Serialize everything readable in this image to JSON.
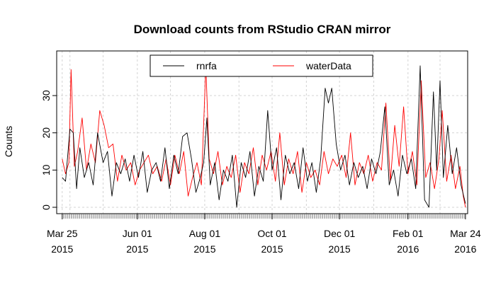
{
  "chart_data": {
    "type": "line",
    "title": "Download counts from RStudio CRAN mirror",
    "xlabel": "",
    "ylabel": "Counts",
    "xlim": [
      "2015-03-20",
      "2016-03-26"
    ],
    "ylim": [
      0,
      38
    ],
    "grid": true,
    "legend_position": "top",
    "x_ticks": [
      {
        "date": "2015-03-25",
        "line1": "Mar 25",
        "line2": "2015"
      },
      {
        "date": "2015-06-01",
        "line1": "Jun 01",
        "line2": "2015"
      },
      {
        "date": "2015-08-01",
        "line1": "Aug 01",
        "line2": "2015"
      },
      {
        "date": "2015-10-01",
        "line1": "Oct 01",
        "line2": "2015"
      },
      {
        "date": "2015-12-01",
        "line1": "Dec 01",
        "line2": "2015"
      },
      {
        "date": "2016-02-01",
        "line1": "Feb 01",
        "line2": "2016"
      },
      {
        "date": "2016-03-24",
        "line1": "Mar 24",
        "line2": "2016"
      }
    ],
    "y_ticks": [
      "0",
      "10",
      "20",
      "30"
    ],
    "series": [
      {
        "name": "rnrfa",
        "color": "#000000",
        "points": [
          [
            "2015-03-25",
            8
          ],
          [
            "2015-03-28",
            7
          ],
          [
            "2015-04-01",
            21
          ],
          [
            "2015-04-04",
            20
          ],
          [
            "2015-04-07",
            5
          ],
          [
            "2015-04-10",
            16
          ],
          [
            "2015-04-14",
            8
          ],
          [
            "2015-04-18",
            12
          ],
          [
            "2015-04-22",
            6
          ],
          [
            "2015-04-26",
            20
          ],
          [
            "2015-05-01",
            12
          ],
          [
            "2015-05-05",
            15
          ],
          [
            "2015-05-09",
            3
          ],
          [
            "2015-05-13",
            12
          ],
          [
            "2015-05-17",
            9
          ],
          [
            "2015-05-21",
            13
          ],
          [
            "2015-05-25",
            7
          ],
          [
            "2015-05-29",
            14
          ],
          [
            "2015-06-02",
            8
          ],
          [
            "2015-06-06",
            15
          ],
          [
            "2015-06-10",
            4
          ],
          [
            "2015-06-14",
            10
          ],
          [
            "2015-06-18",
            12
          ],
          [
            "2015-06-22",
            7
          ],
          [
            "2015-06-26",
            16
          ],
          [
            "2015-06-30",
            5
          ],
          [
            "2015-07-04",
            14
          ],
          [
            "2015-07-08",
            9
          ],
          [
            "2015-07-12",
            19
          ],
          [
            "2015-07-16",
            20
          ],
          [
            "2015-07-20",
            13
          ],
          [
            "2015-07-24",
            4
          ],
          [
            "2015-07-28",
            8
          ],
          [
            "2015-07-31",
            12
          ],
          [
            "2015-08-03",
            24
          ],
          [
            "2015-08-06",
            6
          ],
          [
            "2015-08-10",
            12
          ],
          [
            "2015-08-14",
            2
          ],
          [
            "2015-08-18",
            10
          ],
          [
            "2015-08-22",
            7
          ],
          [
            "2015-08-26",
            14
          ],
          [
            "2015-08-30",
            0
          ],
          [
            "2015-09-03",
            12
          ],
          [
            "2015-09-07",
            8
          ],
          [
            "2015-09-11",
            15
          ],
          [
            "2015-09-15",
            3
          ],
          [
            "2015-09-19",
            11
          ],
          [
            "2015-09-23",
            7
          ],
          [
            "2015-09-27",
            26
          ],
          [
            "2015-10-01",
            10
          ],
          [
            "2015-10-05",
            16
          ],
          [
            "2015-10-09",
            2
          ],
          [
            "2015-10-13",
            14
          ],
          [
            "2015-10-17",
            9
          ],
          [
            "2015-10-21",
            12
          ],
          [
            "2015-10-25",
            5
          ],
          [
            "2015-10-29",
            16
          ],
          [
            "2015-11-02",
            7
          ],
          [
            "2015-11-06",
            12
          ],
          [
            "2015-11-10",
            4
          ],
          [
            "2015-11-14",
            13
          ],
          [
            "2015-11-18",
            32
          ],
          [
            "2015-11-21",
            28
          ],
          [
            "2015-11-24",
            32
          ],
          [
            "2015-11-28",
            17
          ],
          [
            "2015-12-02",
            10
          ],
          [
            "2015-12-06",
            14
          ],
          [
            "2015-12-10",
            6
          ],
          [
            "2015-12-14",
            12
          ],
          [
            "2015-12-18",
            8
          ],
          [
            "2015-12-22",
            11
          ],
          [
            "2015-12-26",
            5
          ],
          [
            "2015-12-30",
            13
          ],
          [
            "2016-01-03",
            9
          ],
          [
            "2016-01-07",
            15
          ],
          [
            "2016-01-11",
            27
          ],
          [
            "2016-01-15",
            6
          ],
          [
            "2016-01-19",
            10
          ],
          [
            "2016-01-23",
            3
          ],
          [
            "2016-01-27",
            14
          ],
          [
            "2016-01-31",
            9
          ],
          [
            "2016-02-04",
            13
          ],
          [
            "2016-02-08",
            5
          ],
          [
            "2016-02-12",
            38
          ],
          [
            "2016-02-16",
            2
          ],
          [
            "2016-02-20",
            0
          ],
          [
            "2016-02-24",
            31
          ],
          [
            "2016-02-27",
            10
          ],
          [
            "2016-03-01",
            34
          ],
          [
            "2016-03-04",
            8
          ],
          [
            "2016-03-08",
            22
          ],
          [
            "2016-03-12",
            9
          ],
          [
            "2016-03-16",
            16
          ],
          [
            "2016-03-20",
            6
          ],
          [
            "2016-03-24",
            1
          ]
        ]
      },
      {
        "name": "waterData",
        "color": "#ff0000",
        "points": [
          [
            "2015-03-25",
            13
          ],
          [
            "2015-03-28",
            9
          ],
          [
            "2015-03-31",
            12
          ],
          [
            "2015-04-02",
            37
          ],
          [
            "2015-04-05",
            11
          ],
          [
            "2015-04-08",
            15
          ],
          [
            "2015-04-12",
            24
          ],
          [
            "2015-04-16",
            10
          ],
          [
            "2015-04-20",
            17
          ],
          [
            "2015-04-24",
            12
          ],
          [
            "2015-04-28",
            26
          ],
          [
            "2015-05-02",
            22
          ],
          [
            "2015-05-06",
            16
          ],
          [
            "2015-05-10",
            17
          ],
          [
            "2015-05-14",
            7
          ],
          [
            "2015-05-18",
            14
          ],
          [
            "2015-05-22",
            10
          ],
          [
            "2015-05-26",
            12
          ],
          [
            "2015-05-30",
            6
          ],
          [
            "2015-06-03",
            10
          ],
          [
            "2015-06-07",
            12
          ],
          [
            "2015-06-11",
            14
          ],
          [
            "2015-06-15",
            9
          ],
          [
            "2015-06-19",
            11
          ],
          [
            "2015-06-23",
            7
          ],
          [
            "2015-06-27",
            13
          ],
          [
            "2015-07-01",
            6
          ],
          [
            "2015-07-05",
            14
          ],
          [
            "2015-07-09",
            9
          ],
          [
            "2015-07-13",
            15
          ],
          [
            "2015-07-17",
            3
          ],
          [
            "2015-07-21",
            8
          ],
          [
            "2015-07-25",
            12
          ],
          [
            "2015-07-29",
            6
          ],
          [
            "2015-08-02",
            38
          ],
          [
            "2015-08-05",
            13
          ],
          [
            "2015-08-09",
            9
          ],
          [
            "2015-08-13",
            15
          ],
          [
            "2015-08-17",
            6
          ],
          [
            "2015-08-21",
            11
          ],
          [
            "2015-08-25",
            8
          ],
          [
            "2015-08-29",
            14
          ],
          [
            "2015-09-02",
            4
          ],
          [
            "2015-09-06",
            12
          ],
          [
            "2015-09-10",
            9
          ],
          [
            "2015-09-14",
            16
          ],
          [
            "2015-09-18",
            6
          ],
          [
            "2015-09-22",
            14
          ],
          [
            "2015-09-26",
            10
          ],
          [
            "2015-09-30",
            15
          ],
          [
            "2015-10-04",
            7
          ],
          [
            "2015-10-08",
            20
          ],
          [
            "2015-10-12",
            6
          ],
          [
            "2015-10-16",
            13
          ],
          [
            "2015-10-20",
            9
          ],
          [
            "2015-10-24",
            15
          ],
          [
            "2015-10-28",
            4
          ],
          [
            "2015-11-01",
            12
          ],
          [
            "2015-11-05",
            8
          ],
          [
            "2015-11-09",
            10
          ],
          [
            "2015-11-13",
            6
          ],
          [
            "2015-11-17",
            15
          ],
          [
            "2015-11-21",
            9
          ],
          [
            "2015-11-25",
            13
          ],
          [
            "2015-11-29",
            11
          ],
          [
            "2015-12-03",
            14
          ],
          [
            "2015-12-07",
            8
          ],
          [
            "2015-12-11",
            20
          ],
          [
            "2015-12-15",
            6
          ],
          [
            "2015-12-19",
            12
          ],
          [
            "2015-12-23",
            9
          ],
          [
            "2015-12-27",
            14
          ],
          [
            "2015-12-31",
            7
          ],
          [
            "2016-01-04",
            12
          ],
          [
            "2016-01-08",
            10
          ],
          [
            "2016-01-12",
            28
          ],
          [
            "2016-01-16",
            7
          ],
          [
            "2016-01-20",
            22
          ],
          [
            "2016-01-24",
            11
          ],
          [
            "2016-01-28",
            27
          ],
          [
            "2016-02-01",
            9
          ],
          [
            "2016-02-05",
            15
          ],
          [
            "2016-02-09",
            6
          ],
          [
            "2016-02-13",
            34
          ],
          [
            "2016-02-17",
            8
          ],
          [
            "2016-02-21",
            12
          ],
          [
            "2016-02-25",
            5
          ],
          [
            "2016-02-29",
            13
          ],
          [
            "2016-03-03",
            26
          ],
          [
            "2016-03-07",
            7
          ],
          [
            "2016-03-11",
            14
          ],
          [
            "2016-03-15",
            5
          ],
          [
            "2016-03-19",
            11
          ],
          [
            "2016-03-22",
            3
          ],
          [
            "2016-03-24",
            0
          ]
        ]
      }
    ]
  }
}
